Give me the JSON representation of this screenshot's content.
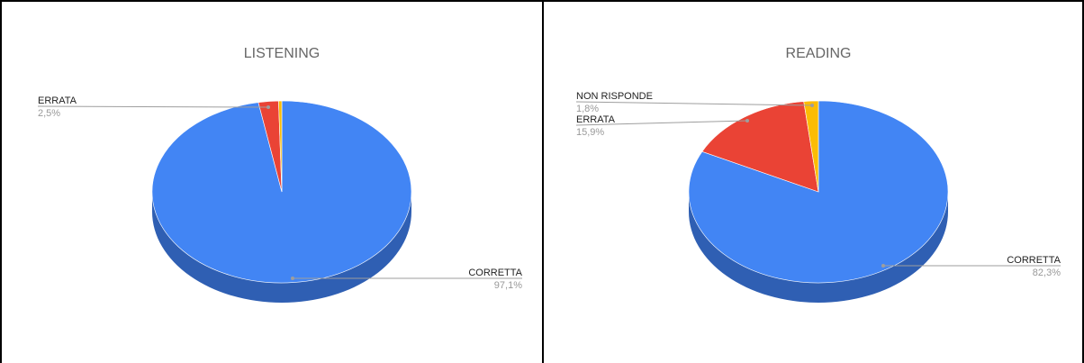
{
  "chart_data": [
    {
      "type": "pie",
      "title": "LISTENING",
      "slices": [
        {
          "label": "CORRETTA",
          "value": 97.1,
          "pct_label": "97,1%",
          "color": "#4285f4",
          "side_color": "#2f5fb3"
        },
        {
          "label": "ERRATA",
          "value": 2.5,
          "pct_label": "2,5%",
          "color": "#ea4335",
          "side_color": "#b3342a"
        },
        {
          "label": "",
          "value": 0.4,
          "pct_label": "",
          "color": "#fbbc04",
          "side_color": "#c49203"
        }
      ]
    },
    {
      "type": "pie",
      "title": "READING",
      "slices": [
        {
          "label": "CORRETTA",
          "value": 82.3,
          "pct_label": "82,3%",
          "color": "#4285f4",
          "side_color": "#2f5fb3"
        },
        {
          "label": "ERRATA",
          "value": 15.9,
          "pct_label": "15,9%",
          "color": "#ea4335",
          "side_color": "#b3342a"
        },
        {
          "label": "NON RISPONDE",
          "value": 1.8,
          "pct_label": "1,8%",
          "color": "#fbbc04",
          "side_color": "#c49203"
        }
      ]
    }
  ]
}
